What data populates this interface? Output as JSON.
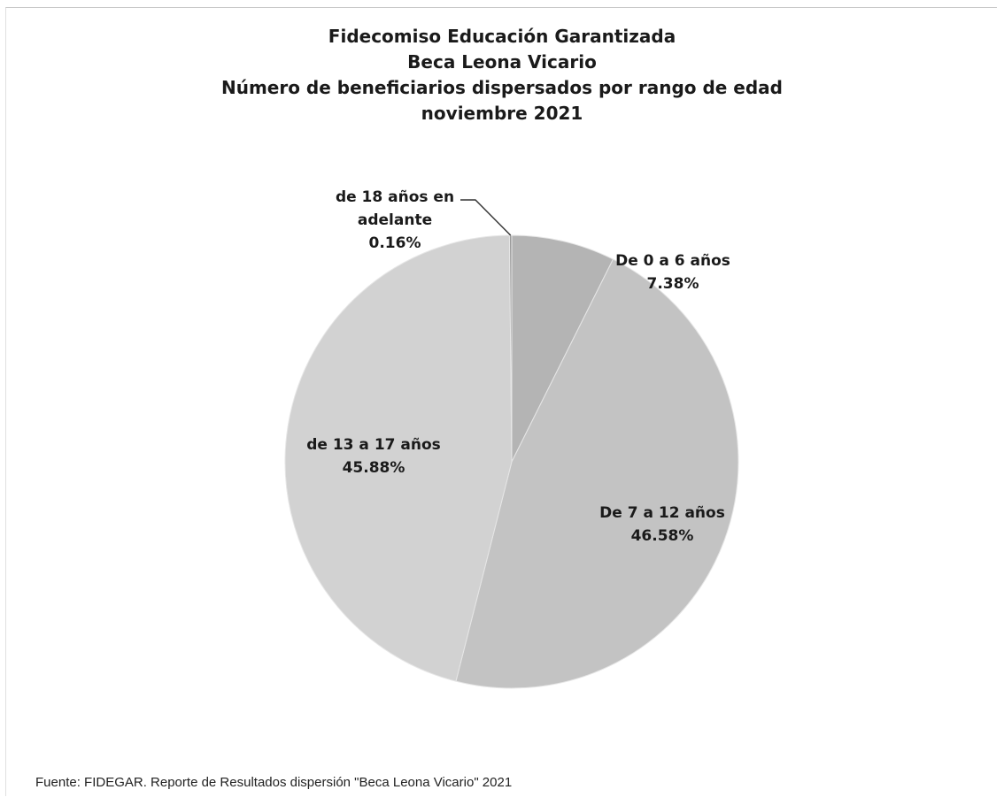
{
  "chart_data": {
    "type": "pie",
    "title_lines": [
      "Fidecomiso Educación Garantizada",
      "Beca Leona Vicario",
      "Número de beneficiarios dispersados por rango de edad",
      "noviembre 2021"
    ],
    "slices": [
      {
        "name": "De 0 a 6 años",
        "value": 7.38,
        "label_lines": [
          "De 0 a 6 años",
          "7.38%"
        ],
        "color": "#b4b4b4"
      },
      {
        "name": "De 7 a 12 años",
        "value": 46.58,
        "label_lines": [
          "De 7 a 12 años",
          "46.58%"
        ],
        "color": "#c3c3c3"
      },
      {
        "name": "de 13 a 17 años",
        "value": 45.88,
        "label_lines": [
          "de 13 a 17 años",
          "45.88%"
        ],
        "color": "#d2d2d2"
      },
      {
        "name": "de 18 años en adelante",
        "value": 0.16,
        "label_lines": [
          "de 18 años en",
          "adelante",
          "0.16%"
        ],
        "color": "#9a9a9a"
      }
    ],
    "start": "12 o'clock",
    "direction": "clockwise",
    "legend": "none"
  },
  "source": "Fuente: FIDEGAR. Reporte de Resultados dispersión \"Beca Leona Vicario\" 2021"
}
